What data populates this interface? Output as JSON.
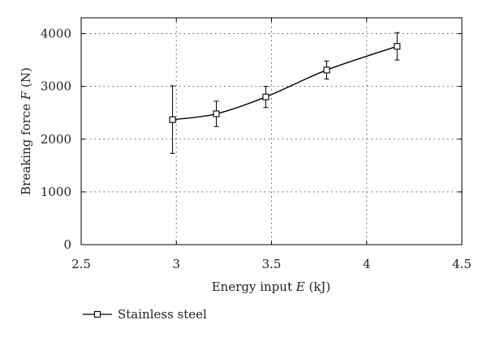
{
  "chart_data": {
    "type": "line",
    "title": "",
    "xlabel_prefix": "Energy input ",
    "xlabel_var": "E",
    "xlabel_suffix": " (kJ)",
    "ylabel_prefix": "Breaking force ",
    "ylabel_var": "F",
    "ylabel_suffix": " (N)",
    "xlim": [
      2.5,
      4.5
    ],
    "ylim": [
      0,
      4300
    ],
    "x_ticks": [
      "2.5",
      "3",
      "3.5",
      "4",
      "4.5"
    ],
    "y_ticks": [
      "0",
      "1000",
      "2000",
      "3000",
      "4000"
    ],
    "grid": "dotted",
    "legend_position": "bottom-left",
    "series": [
      {
        "name": "Stainless steel",
        "marker": "square",
        "x": [
          2.98,
          3.21,
          3.47,
          3.79,
          4.16
        ],
        "y": [
          2370,
          2480,
          2800,
          3310,
          3760
        ],
        "error": [
          640,
          240,
          200,
          170,
          260
        ]
      }
    ]
  }
}
